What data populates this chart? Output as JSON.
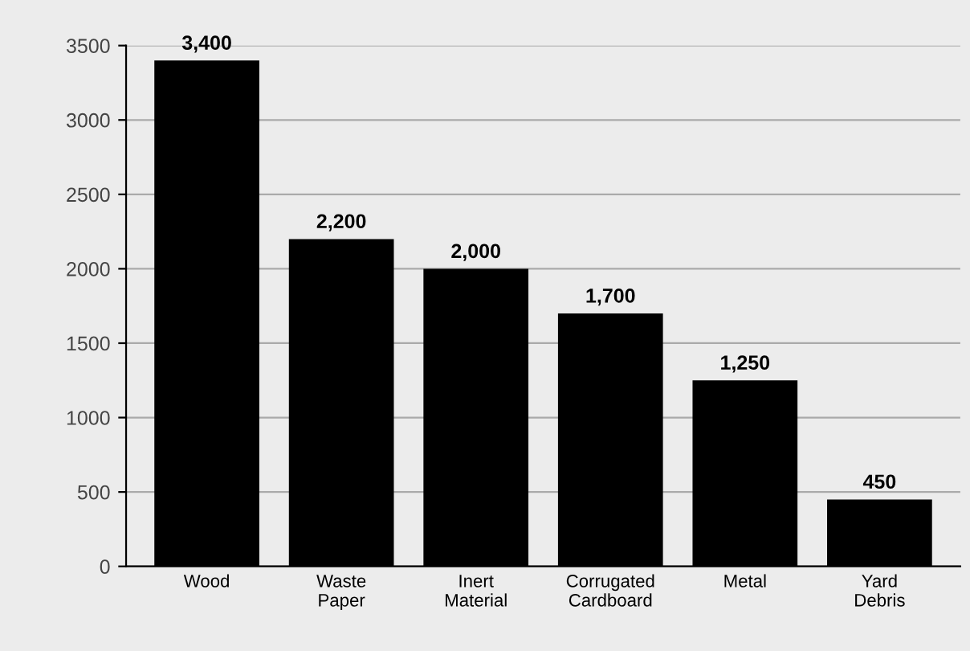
{
  "chart_data": {
    "type": "bar",
    "categories": [
      "Wood",
      "Waste\nPaper",
      "Inert\nMaterial",
      "Corrugated\nCardboard",
      "Metal",
      "Yard\nDebris"
    ],
    "values": [
      3400,
      2200,
      2000,
      1700,
      1250,
      450
    ],
    "value_labels": [
      "3,400",
      "2,200",
      "2,000",
      "1,700",
      "1,250",
      "450"
    ],
    "color": "#000000",
    "ylim": [
      0,
      3500
    ],
    "yticks": [
      0,
      500,
      1000,
      1500,
      2000,
      2500,
      3000,
      3500
    ],
    "grid": "y"
  }
}
